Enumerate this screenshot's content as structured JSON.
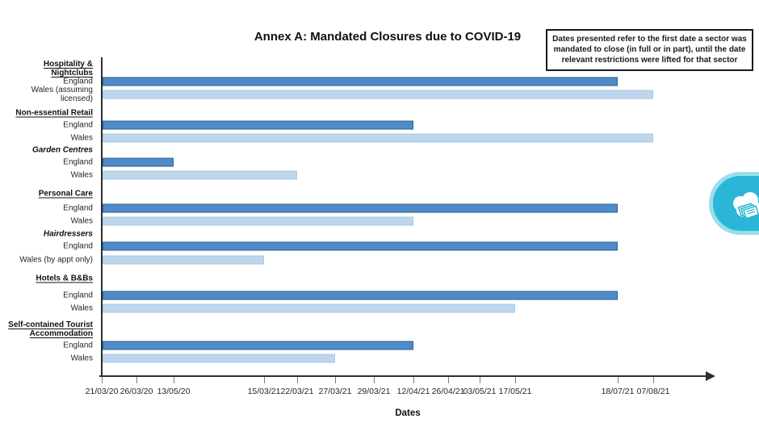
{
  "chart_data": {
    "type": "bar",
    "orientation": "horizontal",
    "title": "Annex A: Mandated Closures due to COVID-19",
    "note": "Dates presented refer to the first date a sector was mandated to close (in full or in part), until the date relevant restrictions were lifted for that sector",
    "xlabel": "Dates",
    "x_ticks": [
      "21/03/20",
      "26/03/20",
      "13/05/20",
      "15/03/21",
      "22/03/21",
      "27/03/21",
      "29/03/21",
      "12/04/21",
      "26/04/21",
      "03/05/21",
      "17/05/21",
      "18/07/21",
      "07/08/21"
    ],
    "x_axis_type": "event-spaced dates (non-linear)",
    "grid": false,
    "legend": "none (series identified by row labels)",
    "bars_start": "21/03/20",
    "colors": {
      "england": "#4f8bc9",
      "england_border": "#2f5f8f",
      "wales": "#bdd6ec",
      "wales_border": "#a6c9e6",
      "axis": "#2e2e2e",
      "badge": "#2bb6d8"
    },
    "rows": [
      {
        "type": "header",
        "label": "Hospitality & Nightclubs"
      },
      {
        "type": "bar",
        "series": "england",
        "label": "England",
        "start": "21/03/20",
        "end": "18/07/21"
      },
      {
        "type": "bar",
        "series": "wales",
        "label": "Wales (assuming licensed)",
        "start": "21/03/20",
        "end": "07/08/21"
      },
      {
        "type": "header",
        "label": "Non-essential Retail"
      },
      {
        "type": "bar",
        "series": "england",
        "label": "England",
        "start": "21/03/20",
        "end": "12/04/21"
      },
      {
        "type": "bar",
        "series": "wales",
        "label": "Wales",
        "start": "21/03/20",
        "end": "07/08/21"
      },
      {
        "type": "subheader",
        "label": "Garden Centres"
      },
      {
        "type": "bar",
        "series": "england",
        "label": "England",
        "start": "21/03/20",
        "end": "13/05/20"
      },
      {
        "type": "bar",
        "series": "wales",
        "label": "Wales",
        "start": "21/03/20",
        "end": "22/03/21"
      },
      {
        "type": "header",
        "label": "Personal Care"
      },
      {
        "type": "bar",
        "series": "england",
        "label": "England",
        "start": "21/03/20",
        "end": "18/07/21"
      },
      {
        "type": "bar",
        "series": "wales",
        "label": "Wales",
        "start": "21/03/20",
        "end": "12/04/21"
      },
      {
        "type": "subheader",
        "label": "Hairdressers"
      },
      {
        "type": "bar",
        "series": "england",
        "label": "England",
        "start": "21/03/20",
        "end": "18/07/21"
      },
      {
        "type": "bar",
        "series": "wales",
        "label": "Wales (by appt only)",
        "start": "21/03/20",
        "end": "15/03/21"
      },
      {
        "type": "header",
        "label": "Hotels & B&Bs"
      },
      {
        "type": "bar",
        "series": "england",
        "label": "England",
        "start": "21/03/20",
        "end": "18/07/21"
      },
      {
        "type": "bar",
        "series": "wales",
        "label": "Wales",
        "start": "21/03/20",
        "end": "17/05/21"
      },
      {
        "type": "header",
        "label": "Self-contained Tourist Accommodation"
      },
      {
        "type": "bar",
        "series": "england",
        "label": "England",
        "start": "21/03/20",
        "end": "12/04/21"
      },
      {
        "type": "bar",
        "series": "wales",
        "label": "Wales",
        "start": "21/03/20",
        "end": "27/03/21"
      }
    ]
  },
  "ui": {
    "cloud_badge": {
      "icon": "cloud-documents-icon",
      "color": "#2bb6d8"
    }
  }
}
